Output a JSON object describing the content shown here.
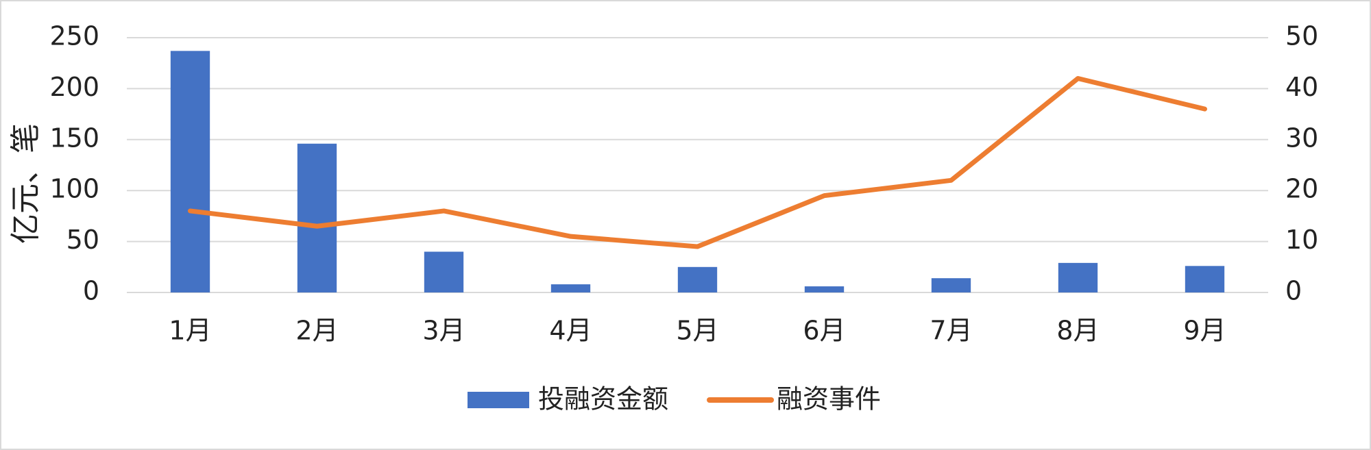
{
  "chart_data": {
    "type": "bar_line",
    "y_label": "亿元、笔",
    "categories": [
      "1月",
      "2月",
      "3月",
      "4月",
      "5月",
      "6月",
      "7月",
      "8月",
      "9月"
    ],
    "series": [
      {
        "name": "投融资金额",
        "type": "bar",
        "color": "#4472C4",
        "values": [
          237,
          146,
          40,
          8,
          25,
          6,
          14,
          29,
          26
        ]
      },
      {
        "name": "融资事件",
        "type": "line",
        "axis": "y2",
        "color": "#ED7D31",
        "values": [
          16,
          13,
          16,
          11,
          9,
          19,
          22,
          42,
          36
        ]
      }
    ],
    "ylim": [
      0,
      250
    ],
    "yticks": [
      0,
      50,
      100,
      150,
      200,
      250
    ],
    "y2lim": [
      0,
      50
    ],
    "y2ticks": [
      0,
      10,
      20,
      30,
      40,
      50
    ],
    "grid": true,
    "legend": "bottom"
  }
}
